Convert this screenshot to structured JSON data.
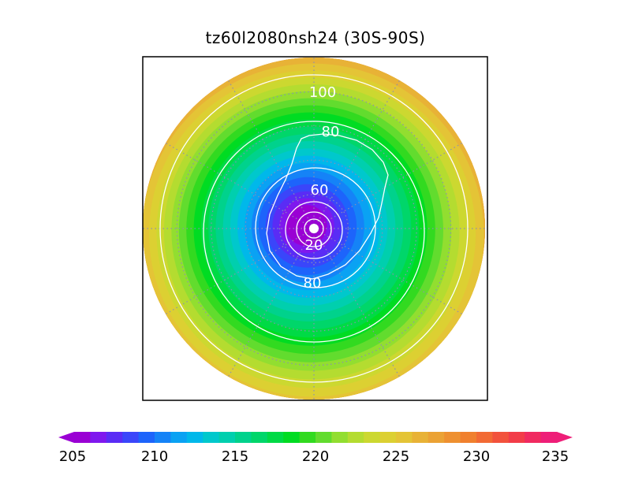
{
  "title": "tz60l2080nsh24 (30S-90S)",
  "map": {
    "projection": "polar-stereographic",
    "hemisphere": "south",
    "lat_range": [
      "30S",
      "90S"
    ],
    "fill_field": "temperature",
    "contour_labels": [
      {
        "value": "100",
        "ring": "outer"
      },
      {
        "value": "80",
        "ring": "upper"
      },
      {
        "value": "60",
        "ring": "inner"
      },
      {
        "value": "20",
        "ring": "center"
      },
      {
        "value": "80",
        "ring": "lower"
      }
    ],
    "fill_bands": [
      {
        "value": 205,
        "color": "#9a00d4"
      },
      {
        "value": 206,
        "color": "#7f18ee"
      },
      {
        "value": 207,
        "color": "#5a2cf5"
      },
      {
        "value": 208,
        "color": "#3a46fa"
      },
      {
        "value": 209,
        "color": "#1d64fb"
      },
      {
        "value": 210,
        "color": "#1583f7"
      },
      {
        "value": 211,
        "color": "#0aa2f3"
      },
      {
        "value": 212,
        "color": "#00b8ea"
      },
      {
        "value": 213,
        "color": "#00c8cc"
      },
      {
        "value": 214,
        "color": "#00cfae"
      },
      {
        "value": 215,
        "color": "#00d28c"
      },
      {
        "value": 216,
        "color": "#00d66a"
      },
      {
        "value": 217,
        "color": "#00da45"
      },
      {
        "value": 218,
        "color": "#00dc22"
      },
      {
        "value": 219,
        "color": "#32da20"
      },
      {
        "value": 220,
        "color": "#62dc2e"
      },
      {
        "value": 221,
        "color": "#92de30"
      },
      {
        "value": 222,
        "color": "#b4dc30"
      },
      {
        "value": 223,
        "color": "#ccd830"
      },
      {
        "value": 224,
        "color": "#dcd032"
      },
      {
        "value": 225,
        "color": "#e4c436"
      },
      {
        "value": 226,
        "color": "#e8b236"
      },
      {
        "value": 227,
        "color": "#eba234"
      },
      {
        "value": 228,
        "color": "#ee9030"
      },
      {
        "value": 229,
        "color": "#f0802e"
      }
    ]
  },
  "colorbar": {
    "min": 205,
    "max": 235,
    "step": 1,
    "tick_labels": [
      "205",
      "210",
      "215",
      "220",
      "225",
      "230",
      "235"
    ],
    "colors": [
      "#9a00d4",
      "#7f18ee",
      "#5a2cf5",
      "#3a46fa",
      "#1d64fb",
      "#1583f7",
      "#0aa2f3",
      "#00b8ea",
      "#00c8cc",
      "#00cfae",
      "#00d28c",
      "#00d66a",
      "#00da45",
      "#00dc22",
      "#32da20",
      "#62dc2e",
      "#92de30",
      "#b4dc30",
      "#ccd830",
      "#dcd032",
      "#e4c436",
      "#e8b236",
      "#eba234",
      "#ee9030",
      "#f0802e",
      "#f26a34",
      "#f2523c",
      "#f23c48",
      "#f02a60",
      "#ee1e78"
    ],
    "extend": "both"
  }
}
